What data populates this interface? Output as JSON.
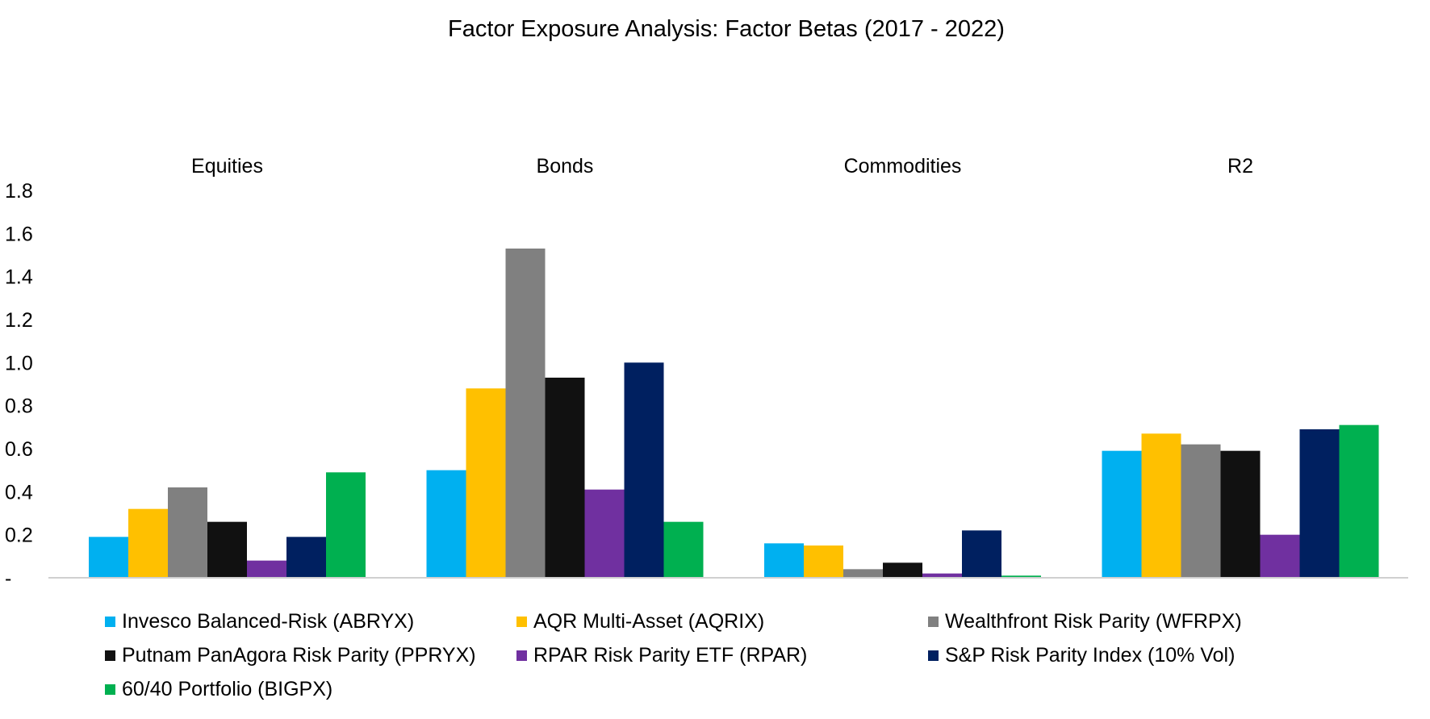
{
  "chart_data": {
    "type": "bar",
    "title": "Factor Exposure Analysis: Factor Betas (2017 - 2022)",
    "categories": [
      "Equities",
      "Bonds",
      "Commodities",
      "R2"
    ],
    "ylim": [
      0,
      1.8
    ],
    "yticks": [
      "-",
      "0.2",
      "0.4",
      "0.6",
      "0.8",
      "1.0",
      "1.2",
      "1.4",
      "1.6",
      "1.8"
    ],
    "grid": false,
    "legend_position": "bottom",
    "series": [
      {
        "name": "Invesco Balanced-Risk (ABRYX)",
        "color": "#00B0F0",
        "values": [
          0.19,
          0.5,
          0.16,
          0.59
        ]
      },
      {
        "name": "AQR Multi-Asset (AQRIX)",
        "color": "#FFC000",
        "values": [
          0.32,
          0.88,
          0.15,
          0.67
        ]
      },
      {
        "name": "Wealthfront Risk Parity (WFRPX)",
        "color": "#808080",
        "values": [
          0.42,
          1.53,
          0.04,
          0.62
        ]
      },
      {
        "name": "Putnam PanAgora Risk Parity (PPRYX)",
        "color": "#111111",
        "values": [
          0.26,
          0.93,
          0.07,
          0.59
        ]
      },
      {
        "name": "RPAR Risk Parity ETF (RPAR)",
        "color": "#7030A0",
        "values": [
          0.08,
          0.41,
          0.02,
          0.2
        ]
      },
      {
        "name": "S&P Risk Parity Index (10% Vol)",
        "color": "#002060",
        "values": [
          0.19,
          1.0,
          0.22,
          0.69
        ]
      },
      {
        "name": "60/40 Portfolio (BIGPX)",
        "color": "#00B050",
        "values": [
          0.49,
          0.26,
          0.01,
          0.71
        ]
      }
    ]
  }
}
